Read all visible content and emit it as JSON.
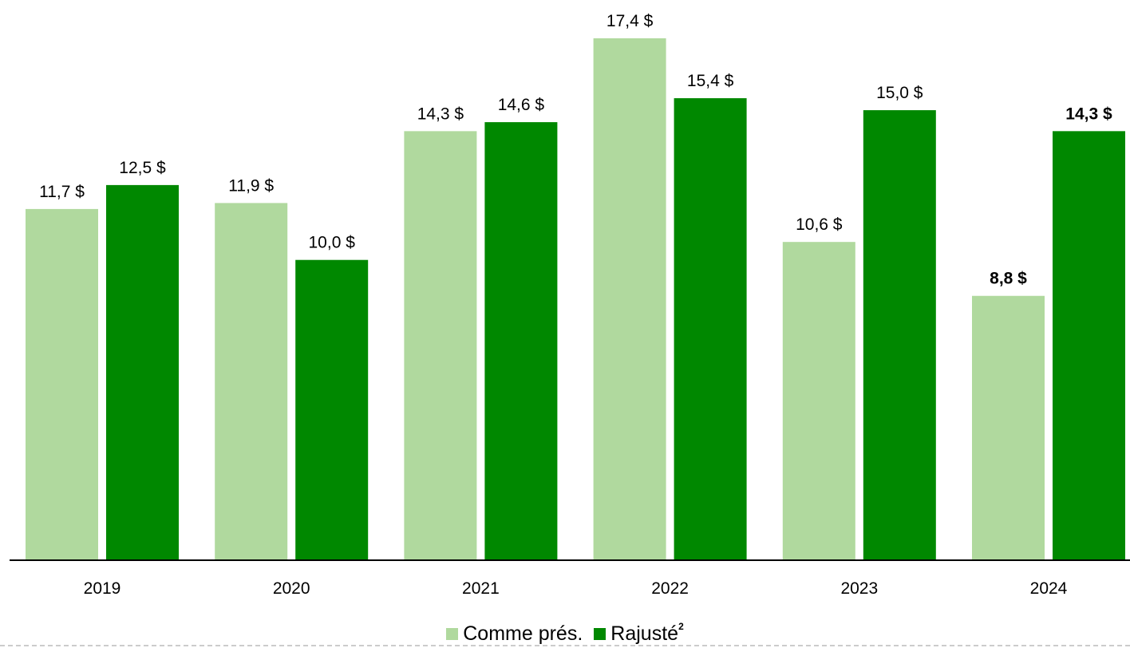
{
  "chart_data": {
    "type": "bar",
    "categories": [
      "2019",
      "2020",
      "2021",
      "2022",
      "2023",
      "2024"
    ],
    "series": [
      {
        "name": "Comme prés.",
        "color": "#b0d99e",
        "values": [
          11.7,
          11.9,
          14.3,
          17.4,
          10.6,
          8.8
        ],
        "labels": [
          "11,7 $",
          "11,9 $",
          "14,3 $",
          "17,4 $",
          "10,6 $",
          "8,8 $"
        ]
      },
      {
        "name": "Rajusté",
        "name_superscript": "2",
        "color": "#008800",
        "values": [
          12.5,
          10.0,
          14.6,
          15.4,
          15.0,
          14.3
        ],
        "labels": [
          "12,5 $",
          "10,0 $",
          "14,6 $",
          "15,4 $",
          "15,0 $",
          "14,3 $"
        ]
      }
    ],
    "bold_category": "2024",
    "ylim": [
      0,
      17.4
    ],
    "grid": false,
    "legend_position": "bottom-center"
  }
}
